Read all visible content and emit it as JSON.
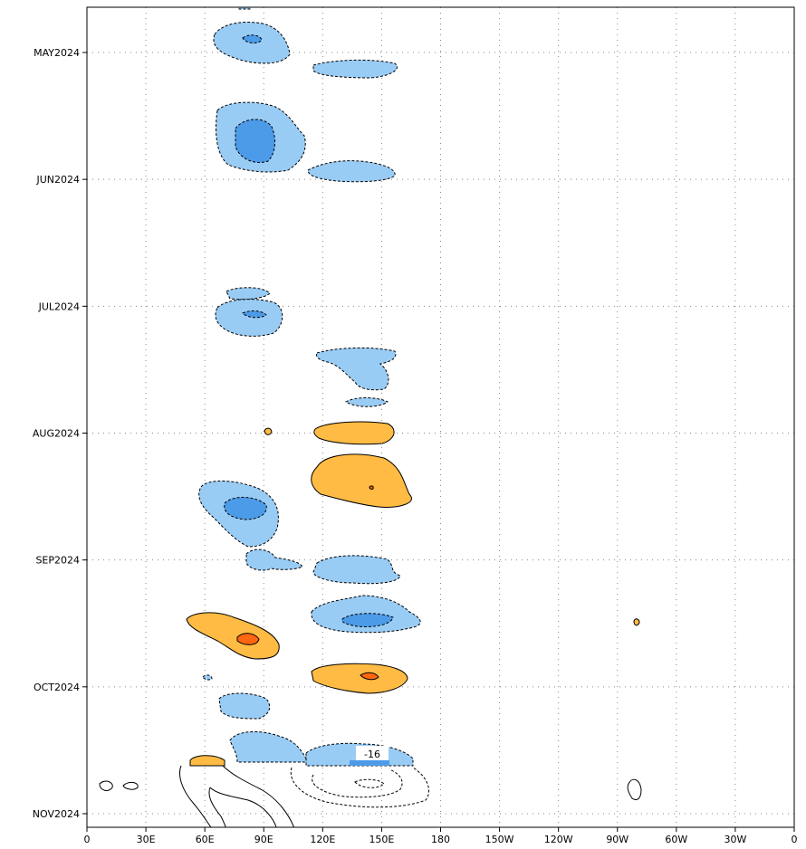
{
  "chart_data": {
    "type": "heatmap",
    "title": "",
    "xlabel": "",
    "ylabel": "",
    "x_ticks": [
      "0",
      "30E",
      "60E",
      "90E",
      "120E",
      "150E",
      "180",
      "150W",
      "120W",
      "90W",
      "60W",
      "30W",
      "0"
    ],
    "x_range_deg_east": [
      0,
      360
    ],
    "y_ticks": [
      "MAY2024",
      "JUN2024",
      "JUL2024",
      "AUG2024",
      "SEP2024",
      "OCT2024",
      "NOV2024"
    ],
    "grid": "dotted",
    "contour_label": "-16",
    "colors": {
      "negative_light": "#99ccf5",
      "negative_mid": "#4c9be8",
      "positive_light": "#ffbb44",
      "positive_mid": "#ff6611",
      "positive_dark": "#cc3300",
      "unshaded_contour": "#000000"
    },
    "regions": [
      {
        "sign": "negative",
        "lon_range": [
          120,
          170
        ],
        "date": "2024-04-20",
        "level": "light"
      },
      {
        "sign": "negative",
        "lon_range": [
          60,
          100
        ],
        "date": "2024-05-03",
        "level": "mid"
      },
      {
        "sign": "negative",
        "lon_range": [
          115,
          160
        ],
        "date": "2024-05-10",
        "level": "light"
      },
      {
        "sign": "negative",
        "lon_range": [
          55,
          95
        ],
        "date": "2024-05-22",
        "level": "mid"
      },
      {
        "sign": "negative",
        "lon_range": [
          100,
          150
        ],
        "date": "2024-05-28",
        "level": "light"
      },
      {
        "sign": "negative",
        "lon_range": [
          55,
          90
        ],
        "date": "2024-07-03",
        "level": "mid"
      },
      {
        "sign": "negative",
        "lon_range": [
          110,
          150
        ],
        "date": "2024-07-16",
        "level": "light"
      },
      {
        "sign": "negative",
        "lon_range": [
          110,
          140
        ],
        "date": "2024-07-24",
        "level": "light"
      },
      {
        "sign": "positive",
        "lon_range": [
          110,
          140
        ],
        "date": "2024-08-01",
        "level": "light"
      },
      {
        "sign": "positive",
        "lon_range": [
          105,
          150
        ],
        "date": "2024-08-12",
        "level": "light"
      },
      {
        "sign": "negative",
        "lon_range": [
          45,
          90
        ],
        "date": "2024-08-20",
        "level": "mid"
      },
      {
        "sign": "negative",
        "lon_range": [
          110,
          145
        ],
        "date": "2024-09-03",
        "level": "light"
      },
      {
        "sign": "negative",
        "lon_range": [
          105,
          160
        ],
        "date": "2024-09-14",
        "level": "mid"
      },
      {
        "sign": "positive",
        "lon_range": [
          45,
          90
        ],
        "date": "2024-09-19",
        "level": "mid"
      },
      {
        "sign": "positive",
        "lon_range": [
          105,
          150
        ],
        "date": "2024-09-30",
        "level": "mid"
      },
      {
        "sign": "negative",
        "lon_range": [
          60,
          85
        ],
        "date": "2024-10-09",
        "level": "light"
      },
      {
        "sign": "negative",
        "lon_range": [
          60,
          95
        ],
        "date": "2024-10-18",
        "level": "light"
      },
      {
        "sign": "negative",
        "lon_range": [
          110,
          160
        ],
        "date": "2024-10-21",
        "level": "mid"
      },
      {
        "sign": "positive",
        "lon_range": [
          50,
          65
        ],
        "date": "2024-10-23",
        "level": "light"
      },
      {
        "sign": "positive",
        "lon_range": [
          278,
          280
        ],
        "date": "2024-09-19",
        "level": "light"
      },
      {
        "sign": "positive",
        "lon_range": [
          89,
          92
        ],
        "date": "2024-08-01",
        "level": "light"
      }
    ]
  }
}
